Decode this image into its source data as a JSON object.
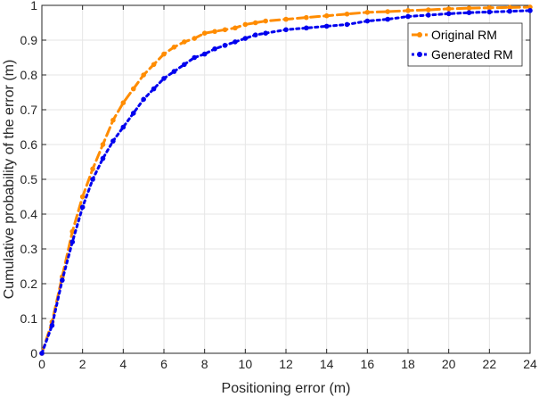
{
  "chart_data": {
    "type": "line",
    "xlabel": "Positioning error (m)",
    "ylabel": "Cumulative probability of the error (m)",
    "xlim": [
      0,
      24
    ],
    "ylim": [
      0,
      1
    ],
    "xticks": [
      "0",
      "2",
      "4",
      "6",
      "8",
      "10",
      "12",
      "14",
      "16",
      "18",
      "20",
      "22",
      "24"
    ],
    "yticks": [
      "0",
      "0.1",
      "0.2",
      "0.3",
      "0.4",
      "0.5",
      "0.6",
      "0.7",
      "0.8",
      "0.9",
      "1"
    ],
    "grid": true,
    "legend_position": "top-right",
    "series": [
      {
        "name": "Original RM",
        "color": "#FF8C00",
        "line_style": "dashed",
        "x": [
          0,
          0.5,
          1,
          1.5,
          2,
          2.5,
          3,
          3.5,
          4,
          4.5,
          5,
          5.5,
          6,
          6.5,
          7,
          7.5,
          8,
          8.5,
          9,
          9.5,
          10,
          10.5,
          11,
          12,
          13,
          14,
          15,
          16,
          17,
          18,
          19,
          20,
          21,
          22,
          23,
          24
        ],
        "y": [
          0,
          0.09,
          0.22,
          0.35,
          0.45,
          0.53,
          0.6,
          0.67,
          0.72,
          0.76,
          0.8,
          0.83,
          0.86,
          0.88,
          0.895,
          0.905,
          0.92,
          0.925,
          0.93,
          0.935,
          0.945,
          0.95,
          0.955,
          0.96,
          0.965,
          0.97,
          0.975,
          0.98,
          0.982,
          0.985,
          0.987,
          0.99,
          0.992,
          0.993,
          0.994,
          0.995
        ]
      },
      {
        "name": "Generated RM",
        "color": "#0000EE",
        "line_style": "dotted",
        "x": [
          0,
          0.5,
          1,
          1.5,
          2,
          2.5,
          3,
          3.5,
          4,
          4.5,
          5,
          5.5,
          6,
          6.5,
          7,
          7.5,
          8,
          8.5,
          9,
          9.5,
          10,
          10.5,
          11,
          12,
          13,
          14,
          15,
          16,
          17,
          18,
          19,
          20,
          21,
          22,
          23,
          24
        ],
        "y": [
          0,
          0.08,
          0.21,
          0.32,
          0.42,
          0.5,
          0.56,
          0.61,
          0.65,
          0.69,
          0.73,
          0.76,
          0.79,
          0.81,
          0.83,
          0.85,
          0.86,
          0.875,
          0.885,
          0.895,
          0.905,
          0.915,
          0.92,
          0.93,
          0.935,
          0.94,
          0.945,
          0.955,
          0.96,
          0.968,
          0.972,
          0.976,
          0.979,
          0.981,
          0.983,
          0.985
        ]
      }
    ]
  }
}
